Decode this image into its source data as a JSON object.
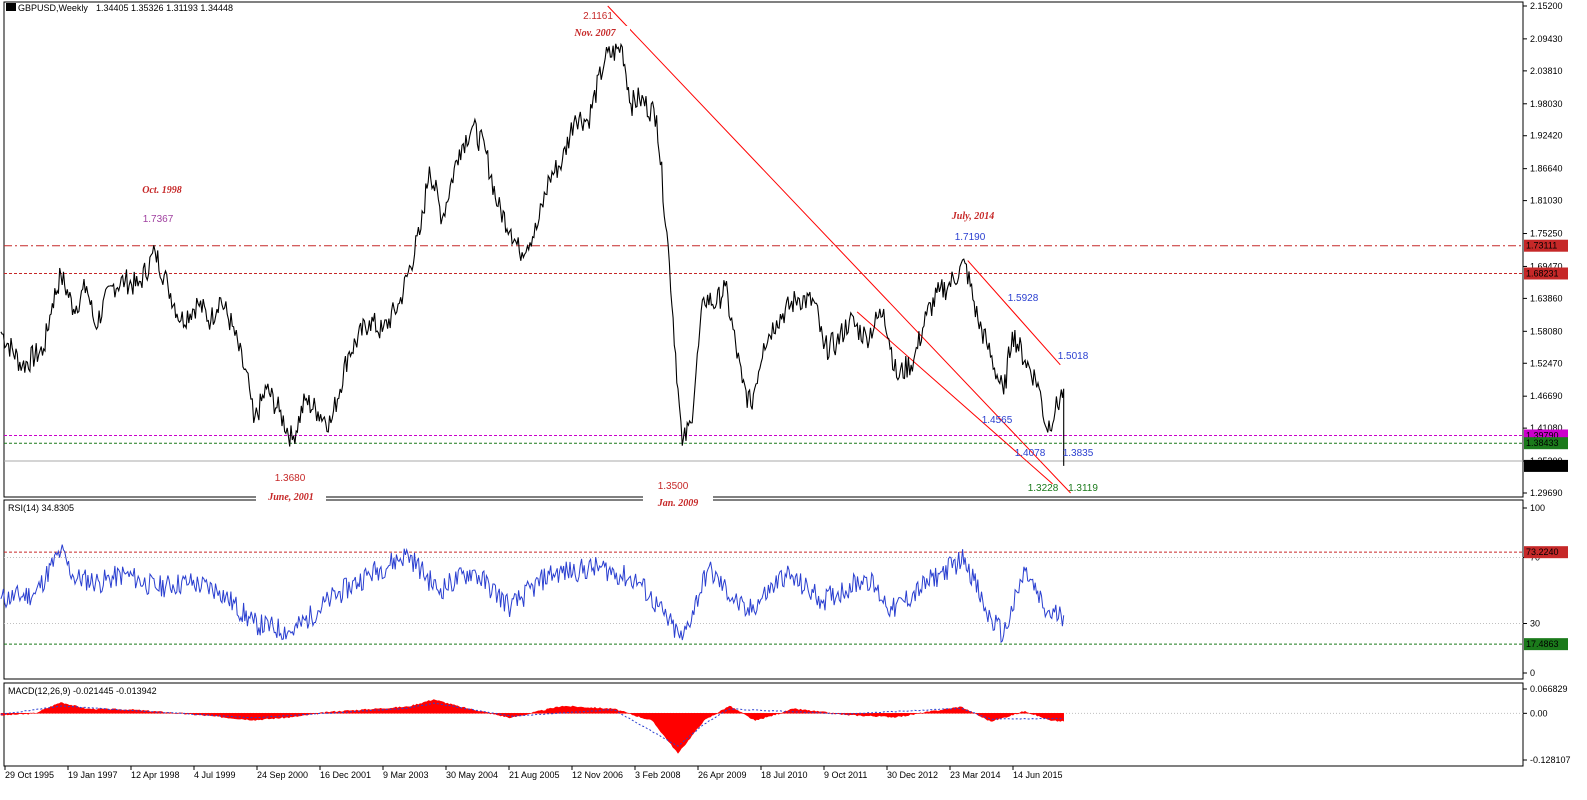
{
  "header": {
    "symbol_label": "GBPUSD,Weekly",
    "ohlc": "1.34405 1.35326 1.31193 1.34448"
  },
  "chart_data": [
    {
      "type": "line",
      "panel": "price",
      "title": "GBPUSD,Weekly",
      "x": [
        "29 Oct 1995",
        "19 Jan 1997",
        "12 Apr 1998",
        "4 Jul 1999",
        "24 Sep 2000",
        "16 Dec 2001",
        "9 Mar 2003",
        "30 May 2004",
        "21 Aug 2005",
        "12 Nov 2006",
        "3 Feb 2008",
        "26 Apr 2009",
        "18 Jul 2010",
        "9 Oct 2011",
        "30 Dec 2012",
        "23 Mar 2014",
        "14 Jun 2015"
      ],
      "y_ticks": [
        "2.15200",
        "2.09430",
        "2.03810",
        "1.98030",
        "1.92420",
        "1.86640",
        "1.81030",
        "1.75250",
        "1.69470",
        "1.63860",
        "1.58080",
        "1.52470",
        "1.46690",
        "1.41080",
        "1.35300",
        "1.29690"
      ],
      "ylim": [
        1.2969,
        2.152
      ],
      "series": [
        {
          "color": "#000000",
          "points": [
            [
              "1995-10",
              1.58
            ],
            [
              "1996-03",
              1.52
            ],
            [
              "1996-08",
              1.55
            ],
            [
              "1996-10",
              1.63
            ],
            [
              "1996-12",
              1.68
            ],
            [
              "1997-03",
              1.62
            ],
            [
              "1997-06",
              1.66
            ],
            [
              "1997-08",
              1.59
            ],
            [
              "1997-12",
              1.66
            ],
            [
              "1998-03",
              1.67
            ],
            [
              "1998-06",
              1.66
            ],
            [
              "1998-10",
              1.72
            ],
            [
              "1999-01",
              1.66
            ],
            [
              "1999-04",
              1.6
            ],
            [
              "1999-08",
              1.63
            ],
            [
              "1999-11",
              1.6
            ],
            [
              "2000-01",
              1.64
            ],
            [
              "2000-04",
              1.59
            ],
            [
              "2000-08",
              1.48
            ],
            [
              "2000-09",
              1.42
            ],
            [
              "2000-12",
              1.48
            ],
            [
              "2001-03",
              1.44
            ],
            [
              "2001-06",
              1.39
            ],
            [
              "2001-09",
              1.46
            ],
            [
              "2001-12",
              1.44
            ],
            [
              "2002-03",
              1.42
            ],
            [
              "2002-07",
              1.54
            ],
            [
              "2002-12",
              1.6
            ],
            [
              "2003-03",
              1.58
            ],
            [
              "2003-07",
              1.63
            ],
            [
              "2003-12",
              1.76
            ],
            [
              "2004-02",
              1.87
            ],
            [
              "2004-05",
              1.78
            ],
            [
              "2004-09",
              1.9
            ],
            [
              "2004-12",
              1.94
            ],
            [
              "2005-03",
              1.9
            ],
            [
              "2005-06",
              1.8
            ],
            [
              "2005-09",
              1.76
            ],
            [
              "2005-11",
              1.72
            ],
            [
              "2006-03",
              1.76
            ],
            [
              "2006-06",
              1.85
            ],
            [
              "2006-09",
              1.88
            ],
            [
              "2006-12",
              1.96
            ],
            [
              "2007-03",
              1.95
            ],
            [
              "2007-07",
              2.06
            ],
            [
              "2007-11",
              2.08
            ],
            [
              "2008-01",
              1.98
            ],
            [
              "2008-03",
              1.99
            ],
            [
              "2008-07",
              1.96
            ],
            [
              "2008-10",
              1.7
            ],
            [
              "2008-12",
              1.48
            ],
            [
              "2009-01",
              1.38
            ],
            [
              "2009-03",
              1.42
            ],
            [
              "2009-06",
              1.64
            ],
            [
              "2009-09",
              1.63
            ],
            [
              "2009-11",
              1.66
            ],
            [
              "2010-03",
              1.49
            ],
            [
              "2010-05",
              1.45
            ],
            [
              "2010-08",
              1.56
            ],
            [
              "2010-11",
              1.6
            ],
            [
              "2011-04",
              1.64
            ],
            [
              "2011-08",
              1.63
            ],
            [
              "2011-10",
              1.55
            ],
            [
              "2012-01",
              1.56
            ],
            [
              "2012-04",
              1.6
            ],
            [
              "2012-08",
              1.57
            ],
            [
              "2012-12",
              1.62
            ],
            [
              "2013-03",
              1.5
            ],
            [
              "2013-07",
              1.53
            ],
            [
              "2013-10",
              1.61
            ],
            [
              "2014-01",
              1.65
            ],
            [
              "2014-03",
              1.66
            ],
            [
              "2014-07",
              1.7
            ],
            [
              "2014-10",
              1.6
            ],
            [
              "2014-12",
              1.56
            ],
            [
              "2015-04",
              1.47
            ],
            [
              "2015-06",
              1.58
            ],
            [
              "2015-09",
              1.53
            ],
            [
              "2015-12",
              1.49
            ],
            [
              "2016-02",
              1.41
            ],
            [
              "2016-04",
              1.44
            ],
            [
              "2016-06",
              1.48
            ],
            [
              "2016-06",
              1.3445
            ]
          ]
        }
      ],
      "price_labels": [
        {
          "value": "1.73111",
          "bg": "#c62828"
        },
        {
          "value": "1.68231",
          "bg": "#c62828"
        },
        {
          "value": "1.39790",
          "bg": "#cc00cc"
        },
        {
          "value": "1.38433",
          "bg": "#1b7a1b"
        },
        {
          "value": "1.34448",
          "bg": "#000000"
        }
      ],
      "annotations": [
        {
          "text": "2.1161",
          "color": "#c62828"
        },
        {
          "text": "Nov. 2007",
          "color": "#c62828",
          "italic": true
        },
        {
          "text": "Oct. 1998",
          "color": "#c62828",
          "italic": true
        },
        {
          "text": "1.7367",
          "color": "#a040a0"
        },
        {
          "text": "July, 2014",
          "color": "#c62828",
          "italic": true
        },
        {
          "text": "1.7190",
          "color": "#2a3fd0"
        },
        {
          "text": "1.5928",
          "color": "#2a3fd0"
        },
        {
          "text": "1.5018",
          "color": "#2a3fd0"
        },
        {
          "text": "1.4565",
          "color": "#2a3fd0"
        },
        {
          "text": "1.4078",
          "color": "#2a3fd0"
        },
        {
          "text": "1.3835",
          "color": "#2a3fd0"
        },
        {
          "text": "1.3228",
          "color": "#1b7a1b"
        },
        {
          "text": "1.3119",
          "color": "#1b7a1b"
        },
        {
          "text": "1.3680",
          "color": "#c62828"
        },
        {
          "text": "June, 2001",
          "color": "#c62828",
          "italic": true
        },
        {
          "text": "1.3500",
          "color": "#c62828"
        },
        {
          "text": "Jan. 2009",
          "color": "#c62828",
          "italic": true
        }
      ]
    },
    {
      "type": "line",
      "panel": "rsi",
      "title": "RSI(14) 34.8305",
      "ylim": [
        0,
        100
      ],
      "y_ticks": [
        "100",
        "70",
        "30",
        "0"
      ],
      "levels": [
        {
          "value": 73.224,
          "label": "73.2240",
          "color": "#c62828"
        },
        {
          "value": 17.4863,
          "label": "17.4863",
          "color": "#1b7a1b"
        }
      ],
      "series": [
        {
          "color": "#2a3fd0",
          "points": [
            [
              "1995-10",
              45
            ],
            [
              "1996-06",
              48
            ],
            [
              "1996-12",
              74
            ],
            [
              "1997-03",
              58
            ],
            [
              "1997-09",
              55
            ],
            [
              "1998-03",
              60
            ],
            [
              "1998-10",
              52
            ],
            [
              "1999-06",
              55
            ],
            [
              "2000-01",
              50
            ],
            [
              "2000-09",
              30
            ],
            [
              "2001-06",
              25
            ],
            [
              "2002-03",
              45
            ],
            [
              "2002-12",
              60
            ],
            [
              "2003-09",
              72
            ],
            [
              "2004-04",
              50
            ],
            [
              "2004-12",
              62
            ],
            [
              "2005-09",
              40
            ],
            [
              "2006-06",
              60
            ],
            [
              "2007-06",
              64
            ],
            [
              "2008-03",
              55
            ],
            [
              "2009-01",
              20
            ],
            [
              "2009-07",
              63
            ],
            [
              "2010-04",
              36
            ],
            [
              "2011-01",
              60
            ],
            [
              "2011-10",
              44
            ],
            [
              "2012-08",
              58
            ],
            [
              "2013-02",
              38
            ],
            [
              "2014-01",
              60
            ],
            [
              "2014-07",
              70
            ],
            [
              "2014-12",
              36
            ],
            [
              "2015-04",
              23
            ],
            [
              "2015-09",
              62
            ],
            [
              "2016-02",
              36
            ],
            [
              "2016-06",
              35
            ]
          ]
        }
      ]
    },
    {
      "type": "area",
      "panel": "macd",
      "title": "MACD(12,26,9) -0.021445 -0.013942",
      "ylim": [
        -0.128107,
        0.066829
      ],
      "y_ticks": [
        "0.066829",
        "0.00",
        "-0.128107"
      ],
      "series": [
        {
          "name": "MACD",
          "color": "#ff0000",
          "points": [
            [
              "1995-10",
              -0.005
            ],
            [
              "1996-06",
              0.0
            ],
            [
              "1996-12",
              0.03
            ],
            [
              "1997-06",
              0.012
            ],
            [
              "1998-04",
              0.01
            ],
            [
              "1999-06",
              -0.002
            ],
            [
              "2000-09",
              -0.018
            ],
            [
              "2001-06",
              -0.01
            ],
            [
              "2002-03",
              0.004
            ],
            [
              "2003-09",
              0.018
            ],
            [
              "2004-03",
              0.038
            ],
            [
              "2004-09",
              0.018
            ],
            [
              "2005-09",
              -0.012
            ],
            [
              "2006-09",
              0.02
            ],
            [
              "2007-09",
              0.012
            ],
            [
              "2008-06",
              -0.02
            ],
            [
              "2008-12",
              -0.11
            ],
            [
              "2009-06",
              -0.02
            ],
            [
              "2009-12",
              0.02
            ],
            [
              "2010-06",
              -0.02
            ],
            [
              "2011-03",
              0.012
            ],
            [
              "2012-03",
              -0.004
            ],
            [
              "2013-03",
              -0.01
            ],
            [
              "2014-03",
              0.012
            ],
            [
              "2014-06",
              0.018
            ],
            [
              "2015-01",
              -0.022
            ],
            [
              "2015-09",
              0.006
            ],
            [
              "2016-03",
              -0.02
            ],
            [
              "2016-06",
              -0.021445
            ]
          ]
        },
        {
          "name": "Signal",
          "color": "#2a3fd0",
          "points": [
            [
              "1995-10",
              -0.003
            ],
            [
              "1996-12",
              0.02
            ],
            [
              "1998-04",
              0.008
            ],
            [
              "2000-09",
              -0.012
            ],
            [
              "2003-09",
              0.014
            ],
            [
              "2004-03",
              0.028
            ],
            [
              "2005-09",
              -0.008
            ],
            [
              "2007-09",
              0.01
            ],
            [
              "2008-12",
              -0.09
            ],
            [
              "2009-06",
              -0.03
            ],
            [
              "2009-12",
              0.012
            ],
            [
              "2012-03",
              -0.002
            ],
            [
              "2014-06",
              0.014
            ],
            [
              "2015-01",
              -0.016
            ],
            [
              "2016-06",
              -0.013942
            ]
          ]
        }
      ]
    }
  ]
}
